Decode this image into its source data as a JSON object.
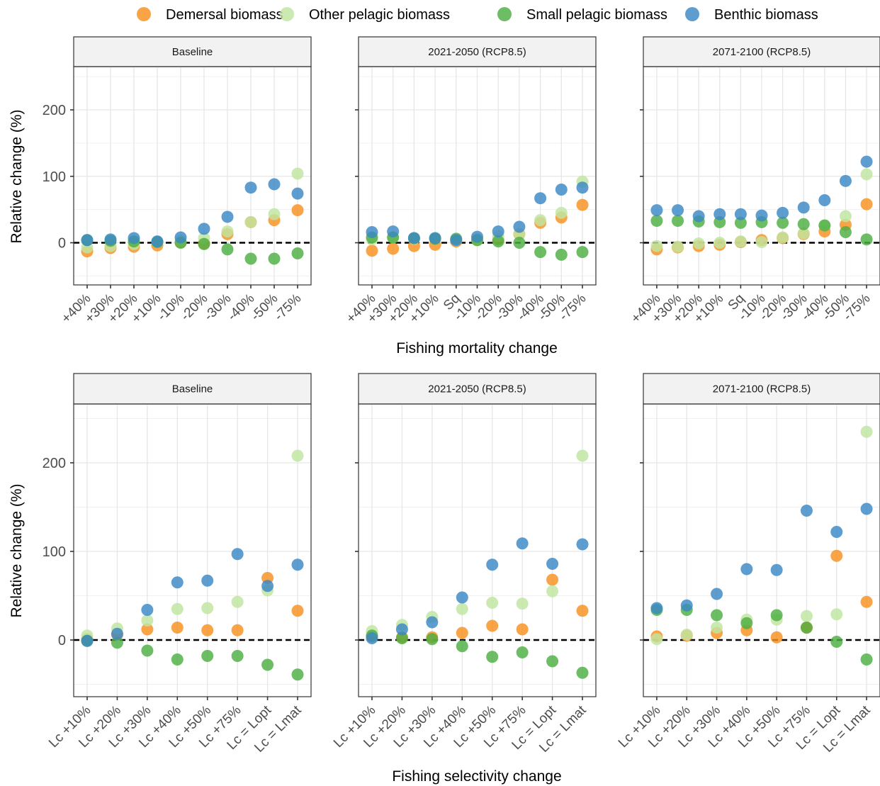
{
  "legend": [
    {
      "name": "Demersal biomass",
      "color": "#F7901E"
    },
    {
      "name": "Other pelagic biomass",
      "color": "#BFE5A0"
    },
    {
      "name": "Small pelagic biomass",
      "color": "#4CAF42"
    },
    {
      "name": "Benthic biomass",
      "color": "#3A87C4"
    }
  ],
  "rows": [
    {
      "xlabel": "Fishing mortality change",
      "ylabel": "Relative change (%)"
    },
    {
      "xlabel": "Fishing selectivity change",
      "ylabel": "Relative change (%)"
    }
  ],
  "chart_data": [
    {
      "type": "scatter",
      "title": "Baseline",
      "xlabel": "",
      "ylabel": "Relative change (%)",
      "ylim": [
        -63,
        265
      ],
      "yticks": [
        0,
        100,
        200
      ],
      "grid": true,
      "categories": [
        "+40%",
        "+30%",
        "+20%",
        "+10%",
        "-10%",
        "-20%",
        "-30%",
        "-40%",
        "-50%",
        "-75%"
      ],
      "series": [
        {
          "name": "Demersal biomass",
          "values": [
            -13,
            -8,
            -6,
            -4,
            1,
            -1,
            13,
            31,
            34,
            49
          ]
        },
        {
          "name": "Other pelagic biomass",
          "values": [
            -7,
            -5,
            -2,
            1,
            3,
            7,
            17,
            31,
            43,
            104
          ]
        },
        {
          "name": "Small pelagic biomass",
          "values": [
            4,
            3,
            2,
            1,
            0,
            -2,
            -10,
            -24,
            -24,
            -16
          ]
        },
        {
          "name": "Benthic biomass",
          "values": [
            4,
            5,
            7,
            2,
            8,
            21,
            39,
            83,
            88,
            74
          ]
        }
      ]
    },
    {
      "type": "scatter",
      "title": "2021-2050 (RCP8.5)",
      "xlabel": "",
      "ylabel": "",
      "ylim": [
        -63,
        265
      ],
      "yticks": [
        0,
        100,
        200
      ],
      "grid": true,
      "categories": [
        "+40%",
        "+30%",
        "+20%",
        "+10%",
        "Sq",
        "-10%",
        "-20%",
        "-30%",
        "-40%",
        "-50%",
        "-75%"
      ],
      "series": [
        {
          "name": "Demersal biomass",
          "values": [
            -12,
            -9,
            -5,
            -3,
            2,
            4,
            5,
            13,
            30,
            38,
            57
          ]
        },
        {
          "name": "Other pelagic biomass",
          "values": [
            5,
            8,
            6,
            7,
            4,
            5,
            10,
            13,
            34,
            45,
            92
          ]
        },
        {
          "name": "Small pelagic biomass",
          "values": [
            8,
            8,
            7,
            6,
            6,
            4,
            2,
            0,
            -14,
            -18,
            -14
          ]
        },
        {
          "name": "Benthic biomass",
          "values": [
            16,
            17,
            7,
            7,
            4,
            9,
            17,
            24,
            67,
            80,
            83
          ]
        }
      ]
    },
    {
      "type": "scatter",
      "title": "2071-2100 (RCP8.5)",
      "xlabel": "",
      "ylabel": "",
      "ylim": [
        -63,
        265
      ],
      "yticks": [
        0,
        100,
        200
      ],
      "grid": true,
      "categories": [
        "+40%",
        "+30%",
        "+20%",
        "+10%",
        "Sq",
        "-10%",
        "-20%",
        "-30%",
        "-40%",
        "-50%",
        "-75%"
      ],
      "series": [
        {
          "name": "Demersal biomass",
          "values": [
            -10,
            -7,
            -5,
            -3,
            1,
            4,
            7,
            13,
            17,
            27,
            58
          ]
        },
        {
          "name": "Other pelagic biomass",
          "values": [
            -5,
            -6,
            -1,
            0,
            2,
            1,
            8,
            14,
            26,
            40,
            103
          ]
        },
        {
          "name": "Small pelagic biomass",
          "values": [
            33,
            33,
            32,
            31,
            30,
            31,
            30,
            28,
            26,
            16,
            5
          ]
        },
        {
          "name": "Benthic biomass",
          "values": [
            49,
            49,
            40,
            43,
            43,
            41,
            45,
            53,
            64,
            93,
            122
          ]
        }
      ]
    },
    {
      "type": "scatter",
      "title": "Baseline",
      "xlabel": "",
      "ylabel": "Relative change (%)",
      "ylim": [
        -65,
        265
      ],
      "yticks": [
        0,
        100,
        200
      ],
      "grid": true,
      "categories": [
        "Lc +10%",
        "Lc +20%",
        "Lc +30%",
        "Lc +40%",
        "Lc +50%",
        "Lc +75%",
        "Lc = Lopt",
        "Lc = Lmat"
      ],
      "series": [
        {
          "name": "Demersal biomass",
          "values": [
            1,
            6,
            12,
            14,
            11,
            11,
            70,
            33
          ]
        },
        {
          "name": "Other pelagic biomass",
          "values": [
            5,
            13,
            22,
            35,
            36,
            43,
            56,
            208
          ]
        },
        {
          "name": "Small pelagic biomass",
          "values": [
            -1,
            -3,
            -12,
            -22,
            -18,
            -18,
            -28,
            -39
          ]
        },
        {
          "name": "Benthic biomass",
          "values": [
            -1,
            7,
            34,
            65,
            67,
            97,
            61,
            85
          ]
        }
      ]
    },
    {
      "type": "scatter",
      "title": "2021-2050 (RCP8.5)",
      "xlabel": "",
      "ylabel": "",
      "ylim": [
        -65,
        265
      ],
      "yticks": [
        0,
        100,
        200
      ],
      "grid": true,
      "categories": [
        "Lc +10%",
        "Lc +20%",
        "Lc +30%",
        "Lc +40%",
        "Lc +50%",
        "Lc +75%",
        "Lc = Lopt",
        "Lc = Lmat"
      ],
      "series": [
        {
          "name": "Demersal biomass",
          "values": [
            4,
            3,
            3,
            8,
            16,
            12,
            68,
            33
          ]
        },
        {
          "name": "Other pelagic biomass",
          "values": [
            10,
            17,
            26,
            35,
            42,
            41,
            55,
            208
          ]
        },
        {
          "name": "Small pelagic biomass",
          "values": [
            5,
            2,
            1,
            -7,
            -19,
            -14,
            -24,
            -37
          ]
        },
        {
          "name": "Benthic biomass",
          "values": [
            2,
            12,
            20,
            48,
            85,
            109,
            86,
            108
          ]
        }
      ]
    },
    {
      "type": "scatter",
      "title": "2071-2100 (RCP8.5)",
      "xlabel": "",
      "ylabel": "",
      "ylim": [
        -65,
        265
      ],
      "yticks": [
        0,
        100,
        200
      ],
      "grid": true,
      "categories": [
        "Lc +10%",
        "Lc +20%",
        "Lc +30%",
        "Lc +40%",
        "Lc +50%",
        "Lc +75%",
        "Lc = Lopt",
        "Lc = Lmat"
      ],
      "series": [
        {
          "name": "Demersal biomass",
          "values": [
            4,
            5,
            8,
            11,
            3,
            14,
            95,
            43
          ]
        },
        {
          "name": "Other pelagic biomass",
          "values": [
            1,
            6,
            14,
            23,
            23,
            27,
            29,
            235
          ]
        },
        {
          "name": "Small pelagic biomass",
          "values": [
            34,
            34,
            28,
            19,
            28,
            14,
            -2,
            -22
          ]
        },
        {
          "name": "Benthic biomass",
          "values": [
            36,
            39,
            52,
            80,
            79,
            146,
            122,
            148
          ]
        }
      ]
    }
  ]
}
